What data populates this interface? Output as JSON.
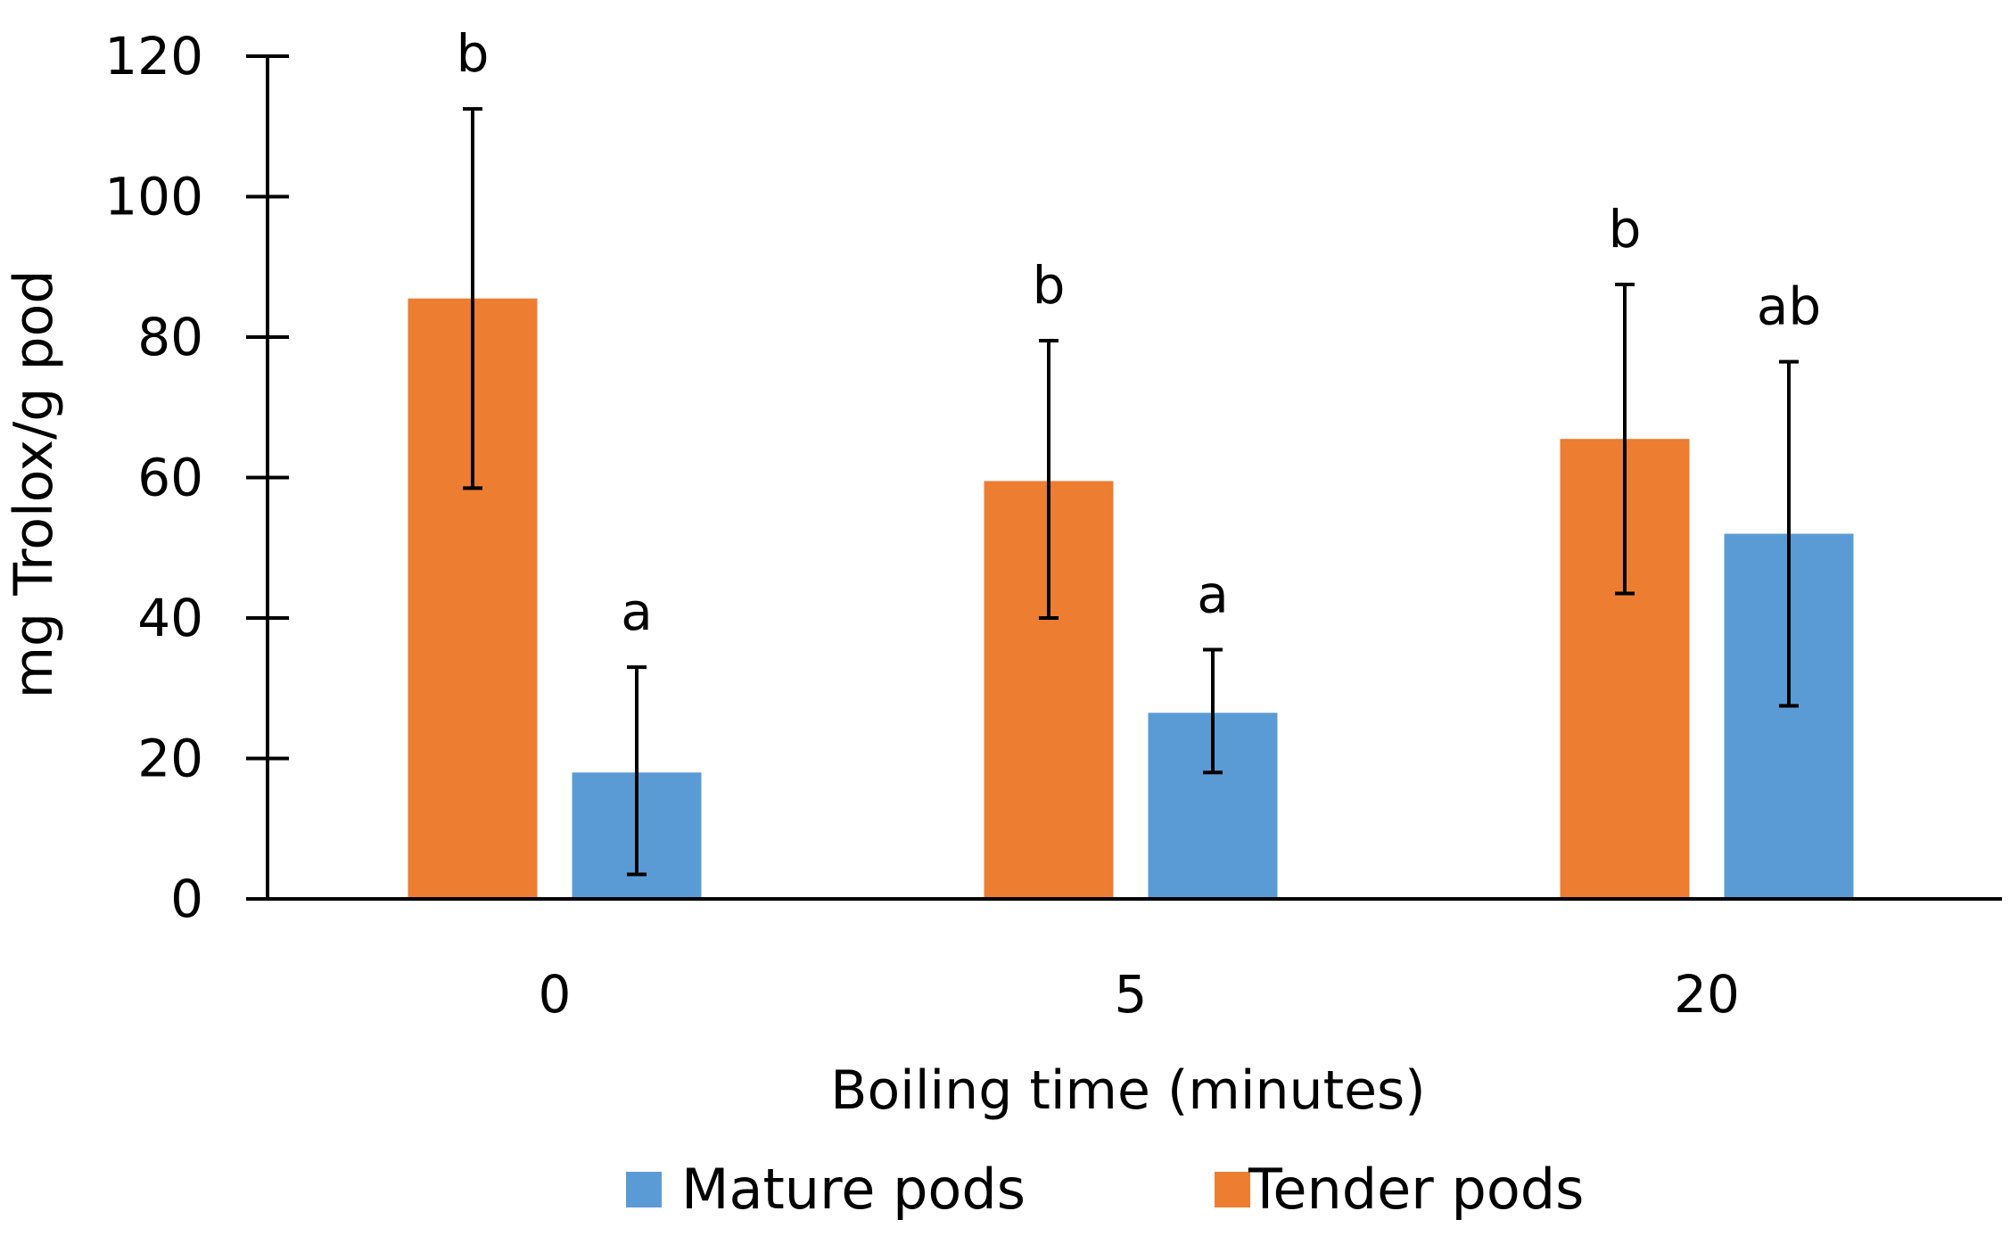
{
  "chart_data": {
    "type": "bar",
    "title": "",
    "xlabel": "Boiling time (minutes)",
    "ylabel": "mg Trolox/g pod",
    "ylim": [
      0,
      120
    ],
    "yticks": [
      0,
      20,
      40,
      60,
      80,
      100,
      120
    ],
    "categories": [
      "0",
      "5",
      "20"
    ],
    "grid": false,
    "legend_position": "bottom",
    "series": [
      {
        "name": "Tender pods",
        "color": "#ED7D31",
        "values": [
          85.5,
          59.5,
          65.5
        ],
        "error_low": [
          58.5,
          40.0,
          43.5
        ],
        "error_high": [
          112.5,
          79.5,
          87.5
        ],
        "significance": [
          "b",
          "b",
          "b"
        ]
      },
      {
        "name": "Mature pods",
        "color": "#5B9BD5",
        "values": [
          18.0,
          26.5,
          52.0
        ],
        "error_low": [
          3.5,
          18.0,
          27.5
        ],
        "error_high": [
          33.0,
          35.5,
          76.5
        ],
        "significance": [
          "a",
          "a",
          "ab"
        ]
      }
    ],
    "legend_order": [
      "Mature pods",
      "Tender pods"
    ]
  }
}
